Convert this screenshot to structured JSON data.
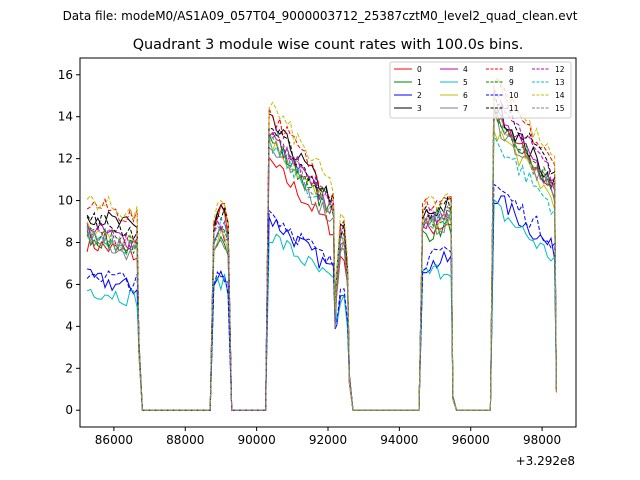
{
  "suptitle": "Data file: modeM0/AS1A09_057T04_9000003712_25387cztM0_level2_quad_clean.evt",
  "chart_data": {
    "type": "line",
    "title": "Quadrant 3 module wise count rates with 100.0s bins.",
    "xlabel": "",
    "ylabel": "",
    "offset_label": "+3.292e8",
    "xlim": [
      85050,
      98950
    ],
    "ylim": [
      -0.8,
      16.8
    ],
    "x_ticks": [
      86000,
      88000,
      90000,
      92000,
      94000,
      96000,
      98000
    ],
    "x_tick_labels": [
      "86000",
      "88000",
      "90000",
      "92000",
      "94000",
      "96000",
      "98000"
    ],
    "y_ticks": [
      0,
      2,
      4,
      6,
      8,
      10,
      12,
      14,
      16
    ],
    "y_tick_labels": [
      "0",
      "2",
      "4",
      "6",
      "8",
      "10",
      "12",
      "14",
      "16"
    ],
    "legend_position": "top-right",
    "segments": [
      {
        "start": 85250,
        "end": 86650,
        "points": 15
      },
      {
        "start": 88800,
        "end": 89200,
        "points": 5
      },
      {
        "start": 90350,
        "end": 92150,
        "points": 19
      },
      {
        "start": 92250,
        "end": 92550,
        "points": 4
      },
      {
        "start": 94650,
        "end": 95450,
        "points": 9
      },
      {
        "start": 96650,
        "end": 98350,
        "points": 18
      }
    ],
    "gap_points": [
      {
        "x": 86700,
        "y": 3
      },
      {
        "x": 86800,
        "y": 0
      },
      {
        "x": 88700,
        "y": 0
      },
      {
        "x": 89300,
        "y": 0
      },
      {
        "x": 90250,
        "y": 0
      },
      {
        "x": 92200,
        "y": 4.5
      },
      {
        "x": 92600,
        "y": 1.5
      },
      {
        "x": 92700,
        "y": 0
      },
      {
        "x": 94550,
        "y": 0
      },
      {
        "x": 95500,
        "y": 0.6
      },
      {
        "x": 95600,
        "y": 0
      },
      {
        "x": 96550,
        "y": 0
      },
      {
        "x": 98400,
        "y": 1.0
      }
    ],
    "series": [
      {
        "name": "0",
        "color": "#ff0000",
        "dash": "solid",
        "levels": [
          8.0,
          9.4,
          11.0,
          7.0,
          9.0,
          13.0
        ]
      },
      {
        "name": "1",
        "color": "#008000",
        "dash": "solid",
        "levels": [
          8.3,
          8.5,
          12.0,
          7.5,
          8.8,
          13.0
        ]
      },
      {
        "name": "2",
        "color": "#0000ff",
        "dash": "solid",
        "levels": [
          6.3,
          6.4,
          8.5,
          5.5,
          7.2,
          9.5
        ]
      },
      {
        "name": "3",
        "color": "#000000",
        "dash": "solid",
        "levels": [
          9.4,
          9.6,
          12.8,
          8.2,
          9.8,
          13.5
        ]
      },
      {
        "name": "4",
        "color": "#bf00bf",
        "dash": "solid",
        "levels": [
          8.7,
          8.5,
          12.2,
          7.8,
          9.5,
          13.2
        ]
      },
      {
        "name": "5",
        "color": "#00bfbf",
        "dash": "solid",
        "levels": [
          5.8,
          6.2,
          7.8,
          5.0,
          6.8,
          9.0
        ]
      },
      {
        "name": "6",
        "color": "#bfbf00",
        "dash": "solid",
        "levels": [
          8.6,
          8.6,
          12.0,
          7.6,
          9.2,
          12.5
        ]
      },
      {
        "name": "7",
        "color": "#7f7f7f",
        "dash": "solid",
        "levels": [
          8.1,
          8.3,
          11.6,
          7.4,
          9.0,
          12.8
        ]
      },
      {
        "name": "8",
        "color": "#ff0000",
        "dash": "dashed",
        "levels": [
          9.9,
          9.8,
          13.2,
          8.4,
          10.2,
          14.5
        ]
      },
      {
        "name": "9",
        "color": "#008000",
        "dash": "dashed",
        "levels": [
          8.5,
          8.9,
          12.3,
          8.0,
          9.5,
          13.2
        ]
      },
      {
        "name": "10",
        "color": "#0000ff",
        "dash": "dashed",
        "levels": [
          6.6,
          6.5,
          8.8,
          5.8,
          7.5,
          10.0
        ]
      },
      {
        "name": "11",
        "color": "#000000",
        "dash": "dashed",
        "levels": [
          9.2,
          9.5,
          12.6,
          8.1,
          9.8,
          14.0
        ]
      },
      {
        "name": "12",
        "color": "#bf00bf",
        "dash": "dashed",
        "levels": [
          8.6,
          9.0,
          12.4,
          7.9,
          9.6,
          13.8
        ]
      },
      {
        "name": "13",
        "color": "#00bfbf",
        "dash": "dashed",
        "levels": [
          8.4,
          8.8,
          11.8,
          7.7,
          9.3,
          12.0
        ]
      },
      {
        "name": "14",
        "color": "#bfbf00",
        "dash": "dashed",
        "levels": [
          10.1,
          9.7,
          13.6,
          8.5,
          10.3,
          14.8
        ]
      },
      {
        "name": "15",
        "color": "#7f7f7f",
        "dash": "dashed",
        "levels": [
          8.3,
          8.8,
          12.1,
          7.8,
          9.4,
          13.0
        ]
      }
    ]
  }
}
